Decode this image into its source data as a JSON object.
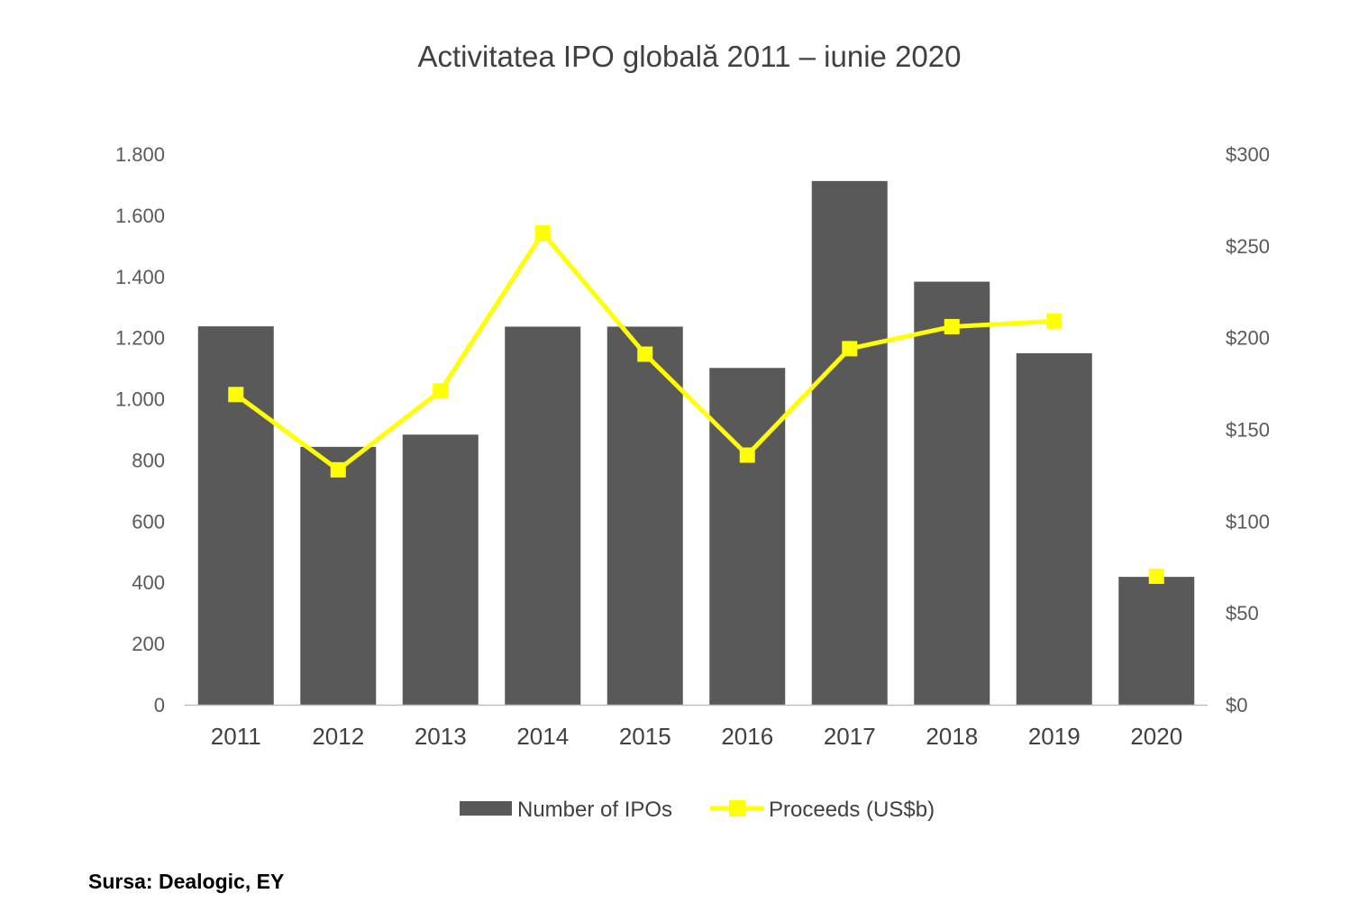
{
  "title": "Activitatea IPO globală 2011 – iunie 2020",
  "source": "Sursa: Dealogic, EY",
  "colors": {
    "bars": "#595959",
    "line": "#ffff00",
    "axis": "#bfbfbf"
  },
  "chart_data": {
    "type": "bar+line",
    "title": "Activitatea IPO globală 2011 – iunie 2020",
    "categories": [
      "2011",
      "2012",
      "2013",
      "2014",
      "2015",
      "2016",
      "2017",
      "2018",
      "2019",
      "2020"
    ],
    "series": [
      {
        "name": "Number of IPOs",
        "type": "bar",
        "axis": "left",
        "values": [
          1237,
          843,
          883,
          1236,
          1236,
          1101,
          1712,
          1383,
          1149,
          418
        ]
      },
      {
        "name": "Proceeds (US$b)",
        "type": "line",
        "axis": "right",
        "values": [
          169,
          128,
          171,
          257,
          191,
          136,
          194,
          206,
          209,
          70
        ],
        "connected_through": "2019"
      }
    ],
    "y_left": {
      "range": [
        0,
        1800
      ],
      "ticks": [
        0,
        200,
        400,
        600,
        800,
        1000,
        1200,
        1400,
        1600,
        1800
      ],
      "tick_labels": [
        "0",
        "200",
        "400",
        "600",
        "800",
        "1.000",
        "1.200",
        "1.400",
        "1.600",
        "1.800"
      ]
    },
    "y_right": {
      "range": [
        0,
        300
      ],
      "ticks": [
        0,
        50,
        100,
        150,
        200,
        250,
        300
      ],
      "tick_labels": [
        "$0",
        "$50",
        "$100",
        "$150",
        "$200",
        "$250",
        "$300"
      ]
    },
    "grid": false,
    "legend": {
      "position": "bottom",
      "entries": [
        "Number of IPOs",
        "Proceeds (US$b)"
      ]
    }
  }
}
